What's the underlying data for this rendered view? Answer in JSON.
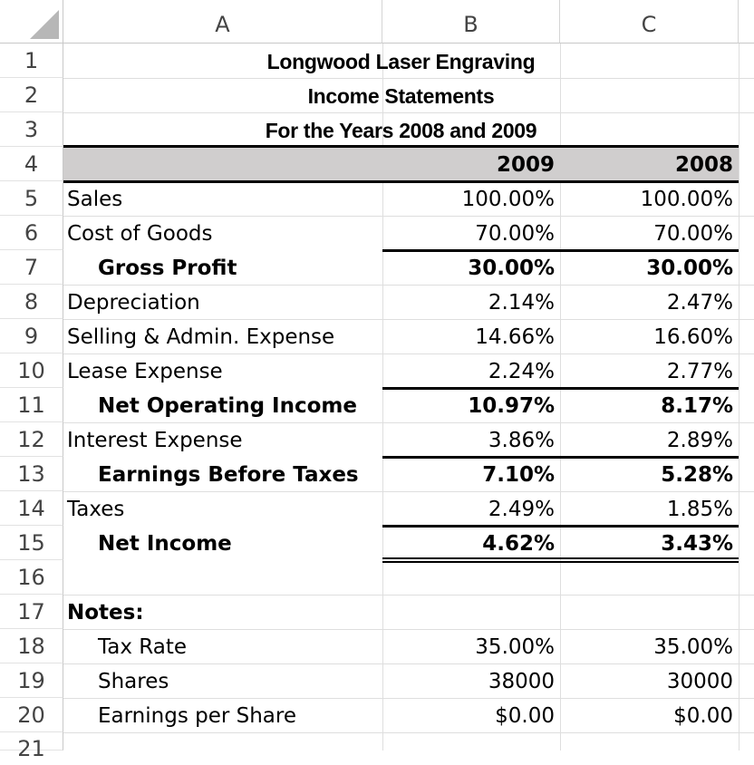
{
  "columns": [
    "A",
    "B",
    "C"
  ],
  "rows": [
    "1",
    "2",
    "3",
    "4",
    "5",
    "6",
    "7",
    "8",
    "9",
    "10",
    "11",
    "12",
    "13",
    "14",
    "15",
    "16",
    "17",
    "18",
    "19",
    "20",
    "21"
  ],
  "title": {
    "company": "Longwood Laser Engraving",
    "statement": "Income Statements",
    "period": "For the Years 2008 and 2009"
  },
  "header": {
    "year_b": "2009",
    "year_c": "2008"
  },
  "lines": [
    {
      "label": "Sales",
      "b": "100.00%",
      "c": "100.00%"
    },
    {
      "label": "Cost of Goods",
      "b": "70.00%",
      "c": "70.00%"
    },
    {
      "label": "Gross Profit",
      "b": "30.00%",
      "c": "30.00%"
    },
    {
      "label": "Depreciation",
      "b": "2.14%",
      "c": "2.47%"
    },
    {
      "label": "Selling & Admin. Expense",
      "b": "14.66%",
      "c": "16.60%"
    },
    {
      "label": "Lease Expense",
      "b": "2.24%",
      "c": "2.77%"
    },
    {
      "label": "Net Operating Income",
      "b": "10.97%",
      "c": "8.17%"
    },
    {
      "label": "Interest Expense",
      "b": "3.86%",
      "c": "2.89%"
    },
    {
      "label": "Earnings Before Taxes",
      "b": "7.10%",
      "c": "5.28%"
    },
    {
      "label": "Taxes",
      "b": "2.49%",
      "c": "1.85%"
    },
    {
      "label": "Net Income",
      "b": "4.62%",
      "c": "3.43%"
    }
  ],
  "notes": {
    "heading": "Notes:",
    "items": [
      {
        "label": "Tax Rate",
        "b": "35.00%",
        "c": "35.00%"
      },
      {
        "label": "Shares",
        "b": "38000",
        "c": "30000"
      },
      {
        "label": "Earnings per Share",
        "b": "$0.00",
        "c": "$0.00"
      }
    ]
  },
  "colors": {
    "header_band": "#d0cece",
    "gridline": "#dedede"
  }
}
